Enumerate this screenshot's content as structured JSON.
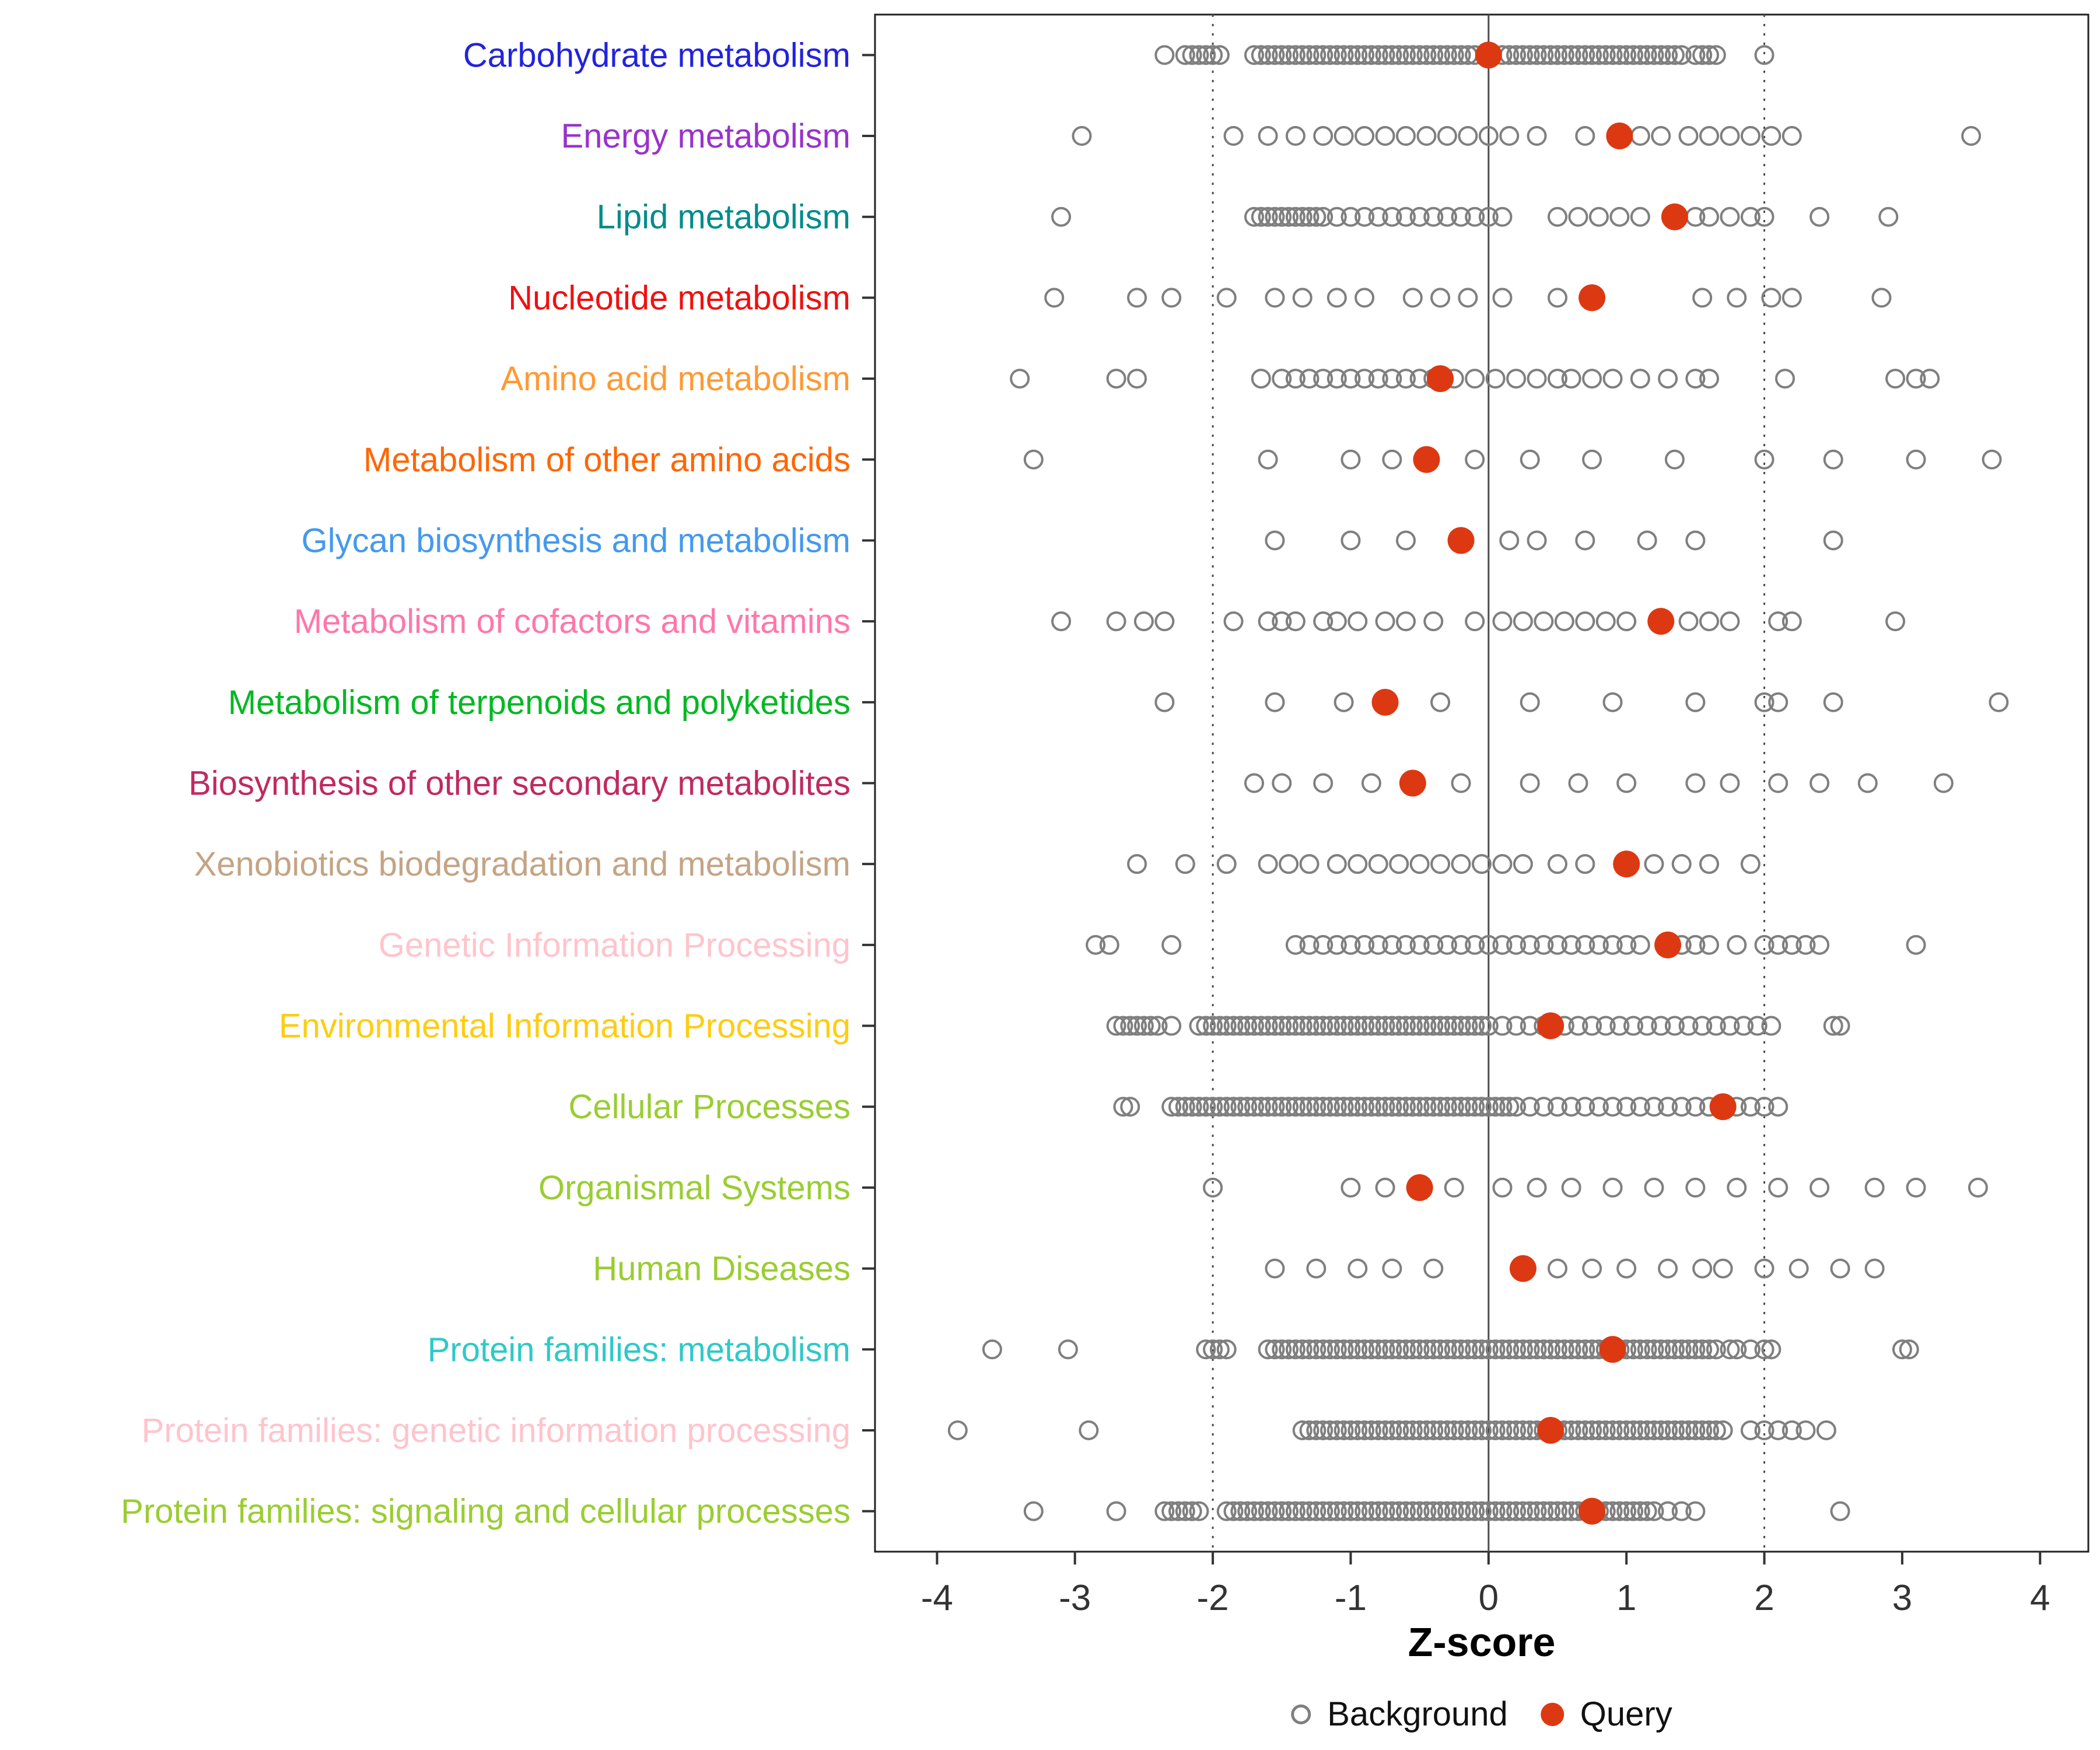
{
  "chart_data": {
    "type": "scatter",
    "title": "",
    "xlabel": "Z-score",
    "ylabel": "",
    "xlim": [
      -4.45,
      4.35
    ],
    "xticks": [
      -4,
      -3,
      -2,
      -1,
      0,
      1,
      2,
      3,
      4
    ],
    "grid": false,
    "reference_lines": {
      "solid_at": 0,
      "dotted_at": [
        -2,
        2
      ]
    },
    "legend": {
      "position": "bottom",
      "background_label": "Background",
      "query_label": "Query"
    },
    "colors": {
      "background_stroke": "#7F7F7F",
      "query_fill": "#DC3912",
      "panel_border": "#222222",
      "ref_line": "#4D4D4D",
      "tick_text": "#333333"
    },
    "categories": [
      {
        "label": "Carbohydrate metabolism",
        "color": "#2323DC",
        "query": 0.0,
        "background": [
          -2.35,
          -2.2,
          -2.15,
          -2.1,
          -2.05,
          -2.0,
          -1.95,
          -1.7,
          -1.65,
          -1.6,
          -1.55,
          -1.5,
          -1.45,
          -1.4,
          -1.35,
          -1.3,
          -1.25,
          -1.2,
          -1.15,
          -1.1,
          -1.05,
          -1.0,
          -0.95,
          -0.9,
          -0.85,
          -0.8,
          -0.75,
          -0.7,
          -0.65,
          -0.6,
          -0.55,
          -0.5,
          -0.45,
          -0.4,
          -0.35,
          -0.3,
          -0.25,
          -0.2,
          -0.15,
          -0.1,
          0.1,
          0.15,
          0.2,
          0.25,
          0.3,
          0.35,
          0.4,
          0.45,
          0.5,
          0.55,
          0.6,
          0.65,
          0.7,
          0.75,
          0.8,
          0.85,
          0.9,
          0.95,
          1.0,
          1.05,
          1.1,
          1.15,
          1.2,
          1.25,
          1.3,
          1.35,
          1.4,
          1.5,
          1.55,
          1.6,
          1.65,
          2.0
        ]
      },
      {
        "label": "Energy metabolism",
        "color": "#9932CC",
        "query": 0.95,
        "background": [
          -2.95,
          -1.85,
          -1.6,
          -1.4,
          -1.2,
          -1.05,
          -0.9,
          -0.75,
          -0.6,
          -0.45,
          -0.3,
          -0.15,
          0.0,
          0.15,
          0.35,
          0.7,
          1.1,
          1.25,
          1.45,
          1.6,
          1.75,
          1.9,
          2.05,
          2.2,
          3.5
        ]
      },
      {
        "label": "Lipid metabolism",
        "color": "#008B8B",
        "query": 1.35,
        "background": [
          -3.1,
          -1.7,
          -1.65,
          -1.6,
          -1.55,
          -1.5,
          -1.45,
          -1.4,
          -1.35,
          -1.3,
          -1.25,
          -1.2,
          -1.1,
          -1.0,
          -0.9,
          -0.8,
          -0.7,
          -0.6,
          -0.5,
          -0.4,
          -0.3,
          -0.2,
          -0.1,
          0.0,
          0.1,
          0.5,
          0.65,
          0.8,
          0.95,
          1.1,
          1.5,
          1.6,
          1.75,
          1.9,
          2.0,
          2.4,
          2.9
        ]
      },
      {
        "label": "Nucleotide metabolism",
        "color": "#EE1111",
        "query": 0.75,
        "background": [
          -3.15,
          -2.55,
          -2.3,
          -1.9,
          -1.55,
          -1.35,
          -1.1,
          -0.9,
          -0.55,
          -0.35,
          -0.15,
          0.1,
          0.5,
          1.55,
          1.8,
          2.05,
          2.2,
          2.85
        ]
      },
      {
        "label": "Amino acid metabolism",
        "color": "#FF9933",
        "query": -0.35,
        "background": [
          -3.4,
          -2.7,
          -2.55,
          -1.65,
          -1.5,
          -1.4,
          -1.3,
          -1.2,
          -1.1,
          -1.0,
          -0.9,
          -0.8,
          -0.7,
          -0.6,
          -0.5,
          -0.4,
          -0.25,
          -0.1,
          0.05,
          0.2,
          0.35,
          0.5,
          0.6,
          0.75,
          0.9,
          1.1,
          1.3,
          1.5,
          1.6,
          2.15,
          2.95,
          3.1,
          3.2
        ]
      },
      {
        "label": "Metabolism of other amino acids",
        "color": "#FF6600",
        "query": -0.45,
        "background": [
          -3.3,
          -1.6,
          -1.0,
          -0.7,
          -0.1,
          0.3,
          0.75,
          1.35,
          2.0,
          2.5,
          3.1,
          3.65
        ]
      },
      {
        "label": "Glycan biosynthesis and metabolism",
        "color": "#4499EE",
        "query": -0.2,
        "background": [
          -1.55,
          -1.0,
          -0.6,
          0.15,
          0.35,
          0.7,
          1.15,
          1.5,
          2.5
        ]
      },
      {
        "label": "Metabolism of cofactors and vitamins",
        "color": "#FF77AA",
        "query": 1.25,
        "background": [
          -3.1,
          -2.7,
          -2.5,
          -2.35,
          -1.85,
          -1.6,
          -1.5,
          -1.4,
          -1.2,
          -1.1,
          -0.95,
          -0.75,
          -0.6,
          -0.4,
          -0.1,
          0.1,
          0.25,
          0.4,
          0.55,
          0.7,
          0.85,
          1.0,
          1.45,
          1.6,
          1.75,
          2.1,
          2.2,
          2.95
        ]
      },
      {
        "label": "Metabolism of terpenoids and polyketides",
        "color": "#00B822",
        "query": -0.75,
        "background": [
          -2.35,
          -1.55,
          -1.05,
          -0.35,
          0.3,
          0.9,
          1.5,
          2.0,
          2.1,
          2.5,
          3.7
        ]
      },
      {
        "label": "Biosynthesis of other secondary metabolites",
        "color": "#C02A5F",
        "query": -0.55,
        "background": [
          -1.7,
          -1.5,
          -1.2,
          -0.85,
          -0.2,
          0.3,
          0.65,
          1.0,
          1.5,
          1.75,
          2.1,
          2.4,
          2.75,
          3.3
        ]
      },
      {
        "label": "Xenobiotics biodegradation and metabolism",
        "color": "#C4A484",
        "query": 1.0,
        "background": [
          -2.55,
          -2.2,
          -1.9,
          -1.6,
          -1.45,
          -1.3,
          -1.1,
          -0.95,
          -0.8,
          -0.65,
          -0.5,
          -0.35,
          -0.2,
          -0.05,
          0.1,
          0.25,
          0.5,
          0.7,
          1.2,
          1.4,
          1.6,
          1.9
        ]
      },
      {
        "label": "Genetic Information Processing",
        "color": "#FFC4CC",
        "query": 1.3,
        "background": [
          -2.85,
          -2.75,
          -2.3,
          -1.4,
          -1.3,
          -1.2,
          -1.1,
          -1.0,
          -0.9,
          -0.8,
          -0.7,
          -0.6,
          -0.5,
          -0.4,
          -0.3,
          -0.2,
          -0.1,
          0.0,
          0.1,
          0.2,
          0.3,
          0.4,
          0.5,
          0.6,
          0.7,
          0.8,
          0.9,
          1.0,
          1.1,
          1.4,
          1.5,
          1.6,
          1.8,
          2.0,
          2.1,
          2.2,
          2.3,
          2.4,
          3.1
        ]
      },
      {
        "label": "Environmental Information Processing",
        "color": "#FFCC11",
        "query": 0.45,
        "background": [
          -2.7,
          -2.65,
          -2.6,
          -2.55,
          -2.5,
          -2.45,
          -2.4,
          -2.3,
          -2.1,
          -2.05,
          -2.0,
          -1.95,
          -1.9,
          -1.85,
          -1.8,
          -1.75,
          -1.7,
          -1.65,
          -1.6,
          -1.55,
          -1.5,
          -1.45,
          -1.4,
          -1.35,
          -1.3,
          -1.25,
          -1.2,
          -1.15,
          -1.1,
          -1.05,
          -1.0,
          -0.95,
          -0.9,
          -0.85,
          -0.8,
          -0.75,
          -0.7,
          -0.65,
          -0.6,
          -0.55,
          -0.5,
          -0.45,
          -0.4,
          -0.35,
          -0.3,
          -0.25,
          -0.2,
          -0.15,
          -0.1,
          -0.05,
          0.0,
          0.1,
          0.2,
          0.3,
          0.4,
          0.55,
          0.65,
          0.75,
          0.85,
          0.95,
          1.05,
          1.15,
          1.25,
          1.35,
          1.45,
          1.55,
          1.65,
          1.75,
          1.85,
          1.95,
          2.05,
          2.5,
          2.55
        ]
      },
      {
        "label": "Cellular Processes",
        "color": "#9ACD32",
        "query": 1.7,
        "background": [
          -2.65,
          -2.6,
          -2.3,
          -2.25,
          -2.2,
          -2.15,
          -2.1,
          -2.05,
          -2.0,
          -1.95,
          -1.9,
          -1.85,
          -1.8,
          -1.75,
          -1.7,
          -1.65,
          -1.6,
          -1.55,
          -1.5,
          -1.45,
          -1.4,
          -1.35,
          -1.3,
          -1.25,
          -1.2,
          -1.15,
          -1.1,
          -1.05,
          -1.0,
          -0.95,
          -0.9,
          -0.85,
          -0.8,
          -0.75,
          -0.7,
          -0.65,
          -0.6,
          -0.55,
          -0.5,
          -0.45,
          -0.4,
          -0.35,
          -0.3,
          -0.25,
          -0.2,
          -0.15,
          -0.1,
          -0.05,
          0.0,
          0.05,
          0.1,
          0.15,
          0.2,
          0.3,
          0.4,
          0.5,
          0.6,
          0.7,
          0.8,
          0.9,
          1.0,
          1.1,
          1.2,
          1.3,
          1.4,
          1.5,
          1.6,
          1.8,
          1.9,
          2.0,
          2.1
        ]
      },
      {
        "label": "Organismal Systems",
        "color": "#9ACD32",
        "query": -0.5,
        "background": [
          -2.0,
          -1.0,
          -0.75,
          -0.25,
          0.1,
          0.35,
          0.6,
          0.9,
          1.2,
          1.5,
          1.8,
          2.1,
          2.4,
          2.8,
          3.1,
          3.55
        ]
      },
      {
        "label": "Human Diseases",
        "color": "#9ACD32",
        "query": 0.25,
        "background": [
          -1.55,
          -1.25,
          -0.95,
          -0.7,
          -0.4,
          0.5,
          0.75,
          1.0,
          1.3,
          1.55,
          1.7,
          2.0,
          2.25,
          2.55,
          2.8
        ]
      },
      {
        "label": "Protein families: metabolism",
        "color": "#2FC9C9",
        "query": 0.9,
        "background": [
          -3.6,
          -3.05,
          -2.05,
          -2.0,
          -1.95,
          -1.9,
          -1.6,
          -1.55,
          -1.5,
          -1.45,
          -1.4,
          -1.35,
          -1.3,
          -1.25,
          -1.2,
          -1.15,
          -1.1,
          -1.05,
          -1.0,
          -0.95,
          -0.9,
          -0.85,
          -0.8,
          -0.75,
          -0.7,
          -0.65,
          -0.6,
          -0.55,
          -0.5,
          -0.45,
          -0.4,
          -0.35,
          -0.3,
          -0.25,
          -0.2,
          -0.15,
          -0.1,
          -0.05,
          0.0,
          0.05,
          0.1,
          0.15,
          0.2,
          0.25,
          0.3,
          0.35,
          0.4,
          0.45,
          0.5,
          0.55,
          0.6,
          0.65,
          0.7,
          0.75,
          0.8,
          0.85,
          0.95,
          1.0,
          1.05,
          1.1,
          1.15,
          1.2,
          1.25,
          1.3,
          1.35,
          1.4,
          1.45,
          1.5,
          1.55,
          1.6,
          1.65,
          1.75,
          1.8,
          1.9,
          2.0,
          2.05,
          3.0,
          3.05
        ]
      },
      {
        "label": "Protein families: genetic information processing",
        "color": "#FFC4CC",
        "query": 0.45,
        "background": [
          -3.85,
          -2.9,
          -1.35,
          -1.3,
          -1.25,
          -1.2,
          -1.15,
          -1.1,
          -1.05,
          -1.0,
          -0.95,
          -0.9,
          -0.85,
          -0.8,
          -0.75,
          -0.7,
          -0.65,
          -0.6,
          -0.55,
          -0.5,
          -0.45,
          -0.4,
          -0.35,
          -0.3,
          -0.25,
          -0.2,
          -0.15,
          -0.1,
          -0.05,
          0.0,
          0.05,
          0.1,
          0.15,
          0.2,
          0.25,
          0.3,
          0.35,
          0.4,
          0.5,
          0.55,
          0.6,
          0.65,
          0.7,
          0.75,
          0.8,
          0.85,
          0.9,
          0.95,
          1.0,
          1.05,
          1.1,
          1.15,
          1.2,
          1.25,
          1.3,
          1.35,
          1.4,
          1.45,
          1.5,
          1.55,
          1.6,
          1.65,
          1.7,
          1.9,
          2.0,
          2.1,
          2.2,
          2.3,
          2.45
        ]
      },
      {
        "label": "Protein families: signaling and cellular processes",
        "color": "#9ACD32",
        "query": 0.75,
        "background": [
          -3.3,
          -2.7,
          -2.35,
          -2.3,
          -2.25,
          -2.2,
          -2.15,
          -2.1,
          -1.9,
          -1.85,
          -1.8,
          -1.75,
          -1.7,
          -1.65,
          -1.6,
          -1.55,
          -1.5,
          -1.45,
          -1.4,
          -1.35,
          -1.3,
          -1.25,
          -1.2,
          -1.15,
          -1.1,
          -1.05,
          -1.0,
          -0.95,
          -0.9,
          -0.85,
          -0.8,
          -0.75,
          -0.7,
          -0.65,
          -0.6,
          -0.55,
          -0.5,
          -0.45,
          -0.4,
          -0.35,
          -0.3,
          -0.25,
          -0.2,
          -0.15,
          -0.1,
          -0.05,
          0.0,
          0.05,
          0.1,
          0.15,
          0.2,
          0.25,
          0.3,
          0.35,
          0.4,
          0.45,
          0.5,
          0.55,
          0.6,
          0.65,
          0.7,
          0.8,
          0.85,
          0.9,
          0.95,
          1.0,
          1.05,
          1.1,
          1.15,
          1.2,
          1.3,
          1.4,
          1.5,
          2.55
        ]
      }
    ]
  }
}
